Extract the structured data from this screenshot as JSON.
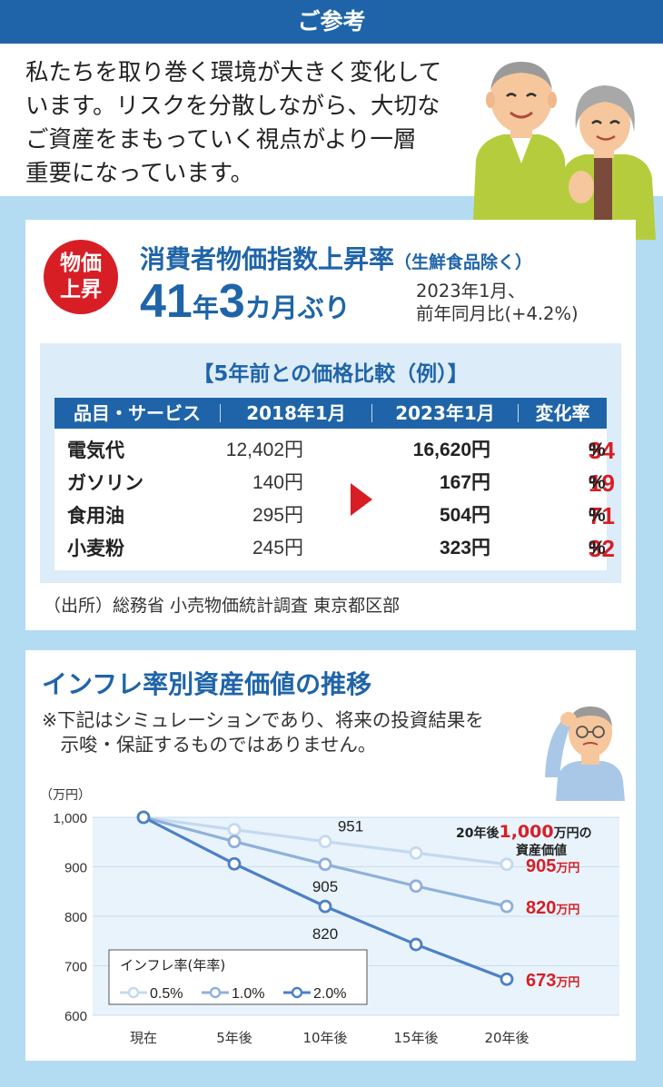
{
  "header": {
    "title": "ご参考"
  },
  "intro": {
    "lines": [
      "私たちを取り巻く環境が大きく変化して",
      "います。リスクを分散しながら、大切な",
      "ご資産をまもっていく視点がより一層",
      "重要になっています。"
    ]
  },
  "cpi": {
    "badge_line1": "物価",
    "badge_line2": "上昇",
    "title": "消費者物価指数上昇率",
    "title_note": "（生鮮食品除く）",
    "big_num1": "41",
    "big_unit1": "年",
    "big_num2": "3",
    "big_unit2": "カ月ぶり",
    "note_line1": "2023年1月、",
    "note_line2": "前年同月比(+4.2%)"
  },
  "comparison": {
    "title": "【5年前との価格比較（例）】",
    "headers": [
      "品目・サービス",
      "2018年1月",
      "2023年1月",
      "変化率"
    ],
    "rows": [
      {
        "item": "電気代",
        "old": "12,402円",
        "new": "16,620円",
        "sign": "+",
        "rate": "34",
        "pct": "%"
      },
      {
        "item": "ガソリン",
        "old": "140円",
        "new": "167円",
        "sign": "+",
        "rate": "19",
        "pct": "%"
      },
      {
        "item": "食用油",
        "old": "295円",
        "new": "504円",
        "sign": "+",
        "rate": "71",
        "pct": "%"
      },
      {
        "item": "小麦粉",
        "old": "245円",
        "new": "323円",
        "sign": "+",
        "rate": "32",
        "pct": "%"
      }
    ],
    "source": "（出所）総務省 小売物価統計調査 東京都区部"
  },
  "inflation": {
    "title": "インフレ率別資産価値の推移",
    "note_line1": "※下記はシミュレーションであり、将来の投資結果を",
    "note_line2": "　示唆・保証するものではありません。"
  },
  "chart_data": {
    "type": "line",
    "title": "インフレ率別資産価値の推移",
    "ylabel": "（万円）",
    "xlabel": "",
    "categories": [
      "現在",
      "5年後",
      "10年後",
      "15年後",
      "20年後"
    ],
    "ylim": [
      600,
      1000
    ],
    "yticks": [
      "1,000",
      "900",
      "800",
      "700",
      "600"
    ],
    "grid": true,
    "legend_title": "インフレ率(年率)",
    "legend_position": "bottom-left",
    "series": [
      {
        "name": "0.5%",
        "color": "#c5d9ef",
        "values": [
          1000,
          975,
          951,
          928,
          905
        ]
      },
      {
        "name": "1.0%",
        "color": "#8fb0da",
        "values": [
          1000,
          951,
          905,
          861,
          820
        ]
      },
      {
        "name": "2.0%",
        "color": "#4d80c4",
        "values": [
          1000,
          906,
          820,
          743,
          673
        ]
      }
    ],
    "point_labels": [
      "951",
      "905",
      "820"
    ],
    "end_labels": [
      "905",
      "820",
      "673"
    ],
    "end_unit": "万円",
    "callout_prefix": "20年後",
    "callout_amount": "1,000",
    "callout_unit": "万円の",
    "callout_line2": "資産価値"
  }
}
